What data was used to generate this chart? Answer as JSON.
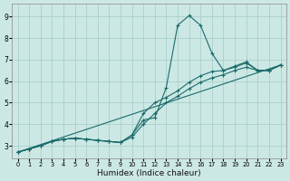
{
  "xlabel": "Humidex (Indice chaleur)",
  "xlim": [
    -0.5,
    23.5
  ],
  "ylim": [
    2.4,
    9.6
  ],
  "xticks": [
    0,
    1,
    2,
    3,
    4,
    5,
    6,
    7,
    8,
    9,
    10,
    11,
    12,
    13,
    14,
    15,
    16,
    17,
    18,
    19,
    20,
    21,
    22,
    23
  ],
  "yticks": [
    3,
    4,
    5,
    6,
    7,
    8,
    9
  ],
  "bg_color": "#cce8e4",
  "grid_color": "#aacfcb",
  "line_color": "#1a6b6b",
  "lines": [
    {
      "x": [
        0,
        1,
        2,
        3,
        4,
        5,
        6,
        7,
        8,
        9,
        10,
        11,
        12,
        13,
        14,
        15,
        16,
        17,
        18,
        19,
        20,
        21,
        22,
        23
      ],
      "y": [
        2.7,
        2.85,
        3.0,
        3.2,
        3.3,
        3.35,
        3.3,
        3.25,
        3.2,
        3.15,
        3.5,
        4.2,
        4.3,
        5.7,
        8.6,
        9.05,
        8.6,
        7.3,
        6.5,
        6.7,
        6.9,
        6.5,
        6.5,
        6.75
      ],
      "marker": true
    },
    {
      "x": [
        0,
        1,
        2,
        3,
        4,
        5,
        6,
        7,
        8,
        9,
        10,
        11,
        12,
        13,
        14,
        15,
        16,
        17,
        18,
        19,
        20,
        21,
        22,
        23
      ],
      "y": [
        2.7,
        2.85,
        3.0,
        3.2,
        3.3,
        3.35,
        3.3,
        3.25,
        3.2,
        3.15,
        3.5,
        4.5,
        5.0,
        5.25,
        5.55,
        5.95,
        6.25,
        6.45,
        6.5,
        6.65,
        6.85,
        6.5,
        6.5,
        6.75
      ],
      "marker": true
    },
    {
      "x": [
        0,
        1,
        2,
        3,
        4,
        5,
        6,
        7,
        8,
        9,
        10,
        11,
        12,
        13,
        14,
        15,
        16,
        17,
        18,
        19,
        20,
        21,
        22,
        23
      ],
      "y": [
        2.7,
        2.85,
        3.0,
        3.2,
        3.3,
        3.35,
        3.3,
        3.25,
        3.2,
        3.15,
        3.4,
        4.0,
        4.5,
        5.0,
        5.3,
        5.65,
        5.95,
        6.15,
        6.3,
        6.5,
        6.65,
        6.5,
        6.5,
        6.75
      ],
      "marker": true
    },
    {
      "x": [
        0,
        23
      ],
      "y": [
        2.7,
        6.75
      ],
      "marker": false
    }
  ]
}
